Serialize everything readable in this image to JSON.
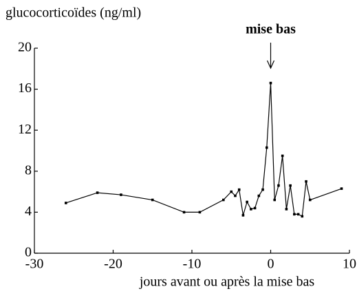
{
  "chart_data": {
    "type": "line",
    "y_label": "glucocorticoïdes (ng/ml)",
    "x_label": "jours avant ou après la mise bas",
    "annotation": {
      "text": "mise bas",
      "x": 0
    },
    "series": [
      {
        "color": "#000000",
        "x": [
          -26,
          -22,
          -19,
          -15,
          -11,
          -9,
          -6,
          -5,
          -4.5,
          -4,
          -3.5,
          -3,
          -2.5,
          -2,
          -1.5,
          -1,
          -0.5,
          0,
          0.5,
          1,
          1.5,
          2,
          2.5,
          3,
          3.5,
          4,
          4.5,
          5,
          9
        ],
        "values": [
          4.9,
          5.9,
          5.7,
          5.2,
          4.0,
          4.0,
          5.2,
          6.0,
          5.6,
          6.2,
          3.7,
          5.0,
          4.3,
          4.4,
          5.6,
          6.2,
          10.3,
          16.6,
          5.2,
          6.6,
          9.5,
          4.3,
          6.6,
          3.8,
          3.8,
          3.6,
          7.0,
          5.2,
          6.3
        ]
      }
    ],
    "xlim": [
      -30,
      10
    ],
    "xticks": [
      -30,
      -20,
      -10,
      0,
      10
    ],
    "ylim": [
      0,
      20
    ],
    "yticks": [
      0,
      4,
      8,
      12,
      16,
      20
    ],
    "grid": false
  }
}
